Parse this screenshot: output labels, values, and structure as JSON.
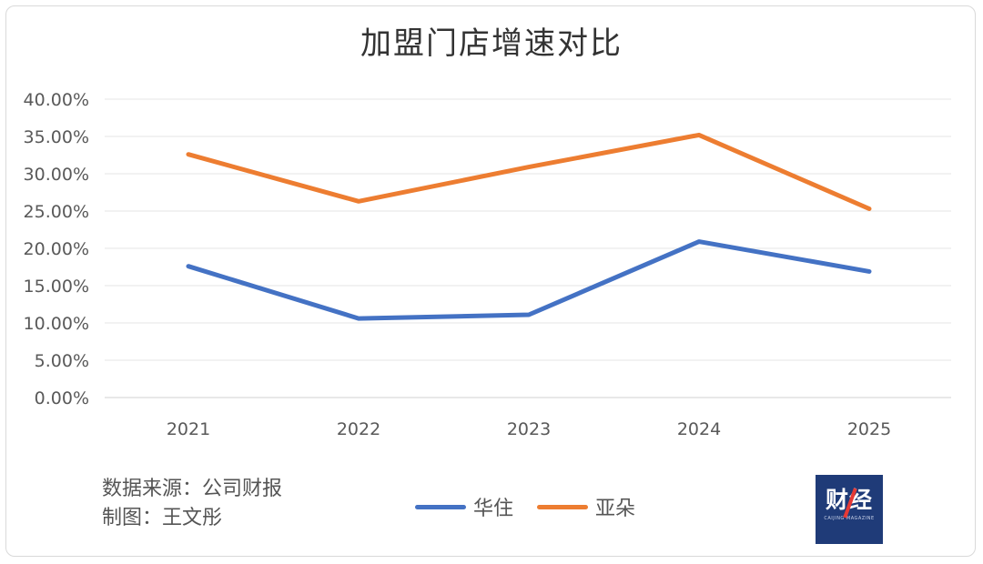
{
  "chart_data": {
    "type": "line",
    "title": "加盟门店增速对比",
    "categories": [
      "2021",
      "2022",
      "2023",
      "2024",
      "2025"
    ],
    "series": [
      {
        "name": "华住",
        "color": "#4472C4",
        "values": [
          17.6,
          10.6,
          11.1,
          20.9,
          16.9
        ]
      },
      {
        "name": "亚朵",
        "color": "#ED7D31",
        "values": [
          32.6,
          26.3,
          30.9,
          35.2,
          25.3
        ]
      }
    ],
    "ylim": [
      0,
      40
    ],
    "yticks": [
      "0.00%",
      "5.00%",
      "10.00%",
      "15.00%",
      "20.00%",
      "25.00%",
      "30.00%",
      "35.00%",
      "40.00%"
    ],
    "ytick_values": [
      0,
      5,
      10,
      15,
      20,
      25,
      30,
      35,
      40
    ],
    "xlabel": "",
    "ylabel": "",
    "grid": true,
    "legend": "bottom-center"
  },
  "footer": {
    "source": "数据来源：公司财报",
    "author": "制图：王文彤"
  },
  "logo": {
    "text": "财经",
    "subtitle": "CAIJING MAGAZINE"
  }
}
